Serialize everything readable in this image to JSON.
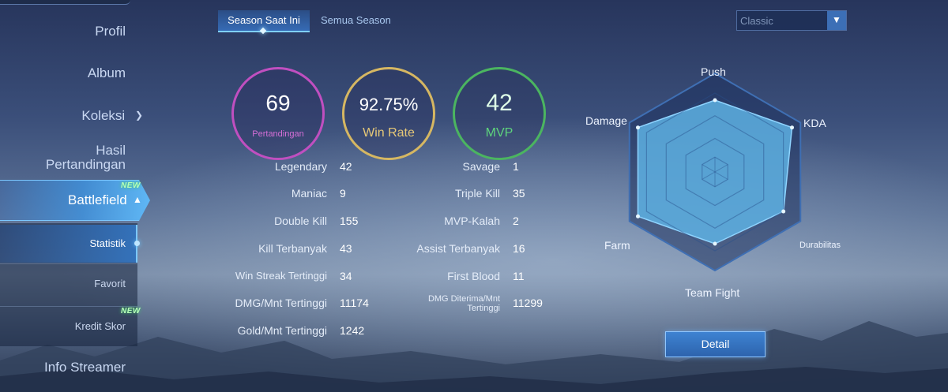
{
  "sidebar": {
    "items": [
      {
        "label": "Profil"
      },
      {
        "label": "Album"
      },
      {
        "label": "Koleksi"
      },
      {
        "label_line1": "Hasil",
        "label_line2": "Pertandingan"
      },
      {
        "label": "Battlefield",
        "badge": "NEW"
      },
      {
        "label": "Info Streamer"
      }
    ],
    "sub_items": [
      {
        "label": "Statistik"
      },
      {
        "label": "Favorit"
      },
      {
        "label": "Kredit Skor",
        "badge": "NEW"
      }
    ]
  },
  "tabs": [
    {
      "label": "Season Saat Ini",
      "active": true
    },
    {
      "label": "Semua Season",
      "active": false
    }
  ],
  "mode_select": {
    "value": "Classic"
  },
  "summary": {
    "matches": {
      "value": "69",
      "label": "Pertandingan"
    },
    "win_rate": {
      "value": "92.75%",
      "label": "Win Rate"
    },
    "mvp": {
      "value": "42",
      "label": "MVP"
    }
  },
  "stats_left": [
    {
      "label": "Legendary",
      "value": "42"
    },
    {
      "label": "Maniac",
      "value": "9"
    },
    {
      "label": "Double Kill",
      "value": "155"
    },
    {
      "label": "Kill Terbanyak",
      "value": "43"
    },
    {
      "label": "Win Streak Tertinggi",
      "value": "34"
    },
    {
      "label": "DMG/Mnt Tertinggi",
      "value": "11174"
    },
    {
      "label": "Gold/Mnt Tertinggi",
      "value": "1242"
    }
  ],
  "stats_right": [
    {
      "label": "Savage",
      "value": "1"
    },
    {
      "label": "Triple Kill",
      "value": "35"
    },
    {
      "label": "MVP-Kalah",
      "value": "2"
    },
    {
      "label": "Assist Terbanyak",
      "value": "16"
    },
    {
      "label": "First Blood",
      "value": "11"
    },
    {
      "label_line1": "DMG Diterima/Mnt",
      "label_line2": "Tertinggi",
      "value": "11299"
    }
  ],
  "radar": {
    "axes": [
      "Push",
      "KDA",
      "Durabilitas",
      "Team Fight",
      "Farm",
      "Damage"
    ],
    "levels": [
      0.8,
      0.99,
      0.88,
      0.8,
      0.99,
      0.99
    ]
  },
  "detail_button": {
    "label": "Detail"
  },
  "colors": {
    "matches_ring": "#c04fc0",
    "win_rate_ring": "#d6b762",
    "mvp_ring": "#4bb560",
    "radar_fill": "#5fb5e6",
    "accent": "#7cc8ff"
  }
}
